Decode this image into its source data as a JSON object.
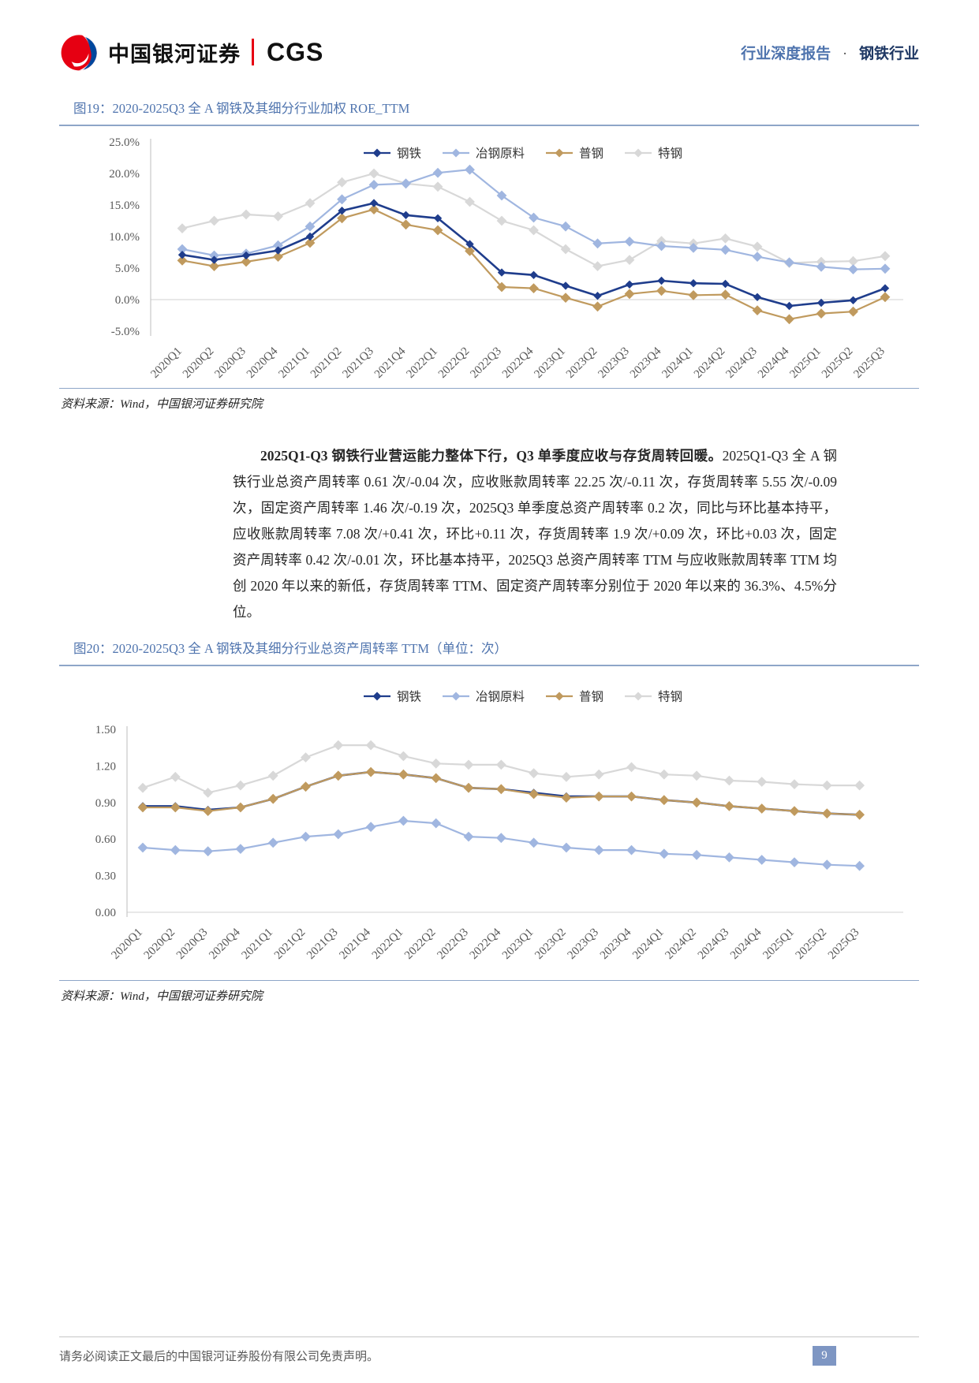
{
  "colors": {
    "brand_red": "#E60012",
    "brand_blue": "#00479D",
    "accent_blue": "#4F74AE",
    "rule_blue": "#8EA6C8",
    "badge_blue": "#7E96C3"
  },
  "header": {
    "logo_text": "中国银河证券",
    "logo_suffix": "CGS",
    "report_type": "行业深度报告",
    "separator": "·",
    "industry": "钢铁行业"
  },
  "figures": [
    {
      "title": "图19：2020-2025Q3 全 A 钢铁及其细分行业加权 ROE_TTM",
      "source": "资料来源：Wind，中国银河证券研究院"
    },
    {
      "title": "图20：2020-2025Q3 全 A 钢铁及其细分行业总资产周转率 TTM（单位：次）",
      "source": "资料来源：Wind，中国银河证券研究院"
    }
  ],
  "paragraph": {
    "lead": "2025Q1-Q3 钢铁行业营运能力整体下行，Q3 单季度应收与存货周转回暖。",
    "body": "2025Q1-Q3 全 A 钢铁行业总资产周转率 0.61 次/-0.04 次，应收账款周转率 22.25 次/-0.11 次，存货周转率 5.55 次/-0.09 次，固定资产周转率 1.46 次/-0.19 次，2025Q3 单季度总资产周转率 0.2 次，同比与环比基本持平，应收账款周转率 7.08 次/+0.41 次，环比+0.11 次，存货周转率 1.9 次/+0.09 次，环比+0.03 次，固定资产周转率 0.42 次/-0.01 次，环比基本持平，2025Q3 总资产周转率 TTM 与应收账款周转率 TTM 均创 2020 年以来的新低，存货周转率 TTM、固定资产周转率分别位于 2020 年以来的 36.3%、4.5%分位。"
  },
  "footer": {
    "disclaimer": "请务必阅读正文最后的中国银河证券股份有限公司免责声明。",
    "page_number": "9"
  },
  "chart_data": [
    {
      "type": "line",
      "title": "2020-2025Q3 全 A 钢铁及其细分行业加权 ROE_TTM",
      "categories": [
        "2020Q1",
        "2020Q2",
        "2020Q3",
        "2020Q4",
        "2021Q1",
        "2021Q2",
        "2021Q3",
        "2021Q4",
        "2022Q1",
        "2022Q2",
        "2022Q3",
        "2022Q4",
        "2023Q1",
        "2023Q2",
        "2023Q3",
        "2023Q4",
        "2024Q1",
        "2024Q2",
        "2024Q3",
        "2024Q4",
        "2025Q1",
        "2025Q2",
        "2025Q3"
      ],
      "ylim": [
        -5,
        25
      ],
      "ytick_values": [
        25,
        20,
        15,
        10,
        5,
        0,
        -5
      ],
      "ytick_labels": [
        "25.0%",
        "20.0%",
        "15.0%",
        "10.0%",
        "5.0%",
        "0.0%",
        "-5.0%"
      ],
      "gridlines": [
        0
      ],
      "legend_position": "top-center",
      "draw_order": [
        "特钢",
        "冶钢原料",
        "普钢",
        "钢铁"
      ],
      "series": [
        {
          "name": "钢铁",
          "color": "#1F3D8C",
          "values": [
            7.1,
            6.3,
            7.0,
            7.8,
            10.0,
            14.1,
            15.3,
            13.4,
            12.9,
            8.8,
            4.3,
            3.9,
            2.2,
            0.6,
            2.4,
            3.0,
            2.6,
            2.5,
            0.4,
            -1.0,
            -0.5,
            -0.1,
            1.8
          ]
        },
        {
          "name": "冶钢原料",
          "color": "#A0B6E0",
          "values": [
            8.0,
            7.0,
            7.3,
            8.6,
            11.6,
            15.9,
            18.2,
            18.4,
            20.1,
            20.6,
            16.5,
            13.0,
            11.6,
            8.9,
            9.2,
            8.5,
            8.2,
            7.9,
            6.8,
            5.9,
            5.2,
            4.8,
            4.9
          ]
        },
        {
          "name": "普钢",
          "color": "#C09A5E",
          "values": [
            6.2,
            5.3,
            6.0,
            6.8,
            9.0,
            12.9,
            14.3,
            11.9,
            11.0,
            7.7,
            2.0,
            1.8,
            0.3,
            -1.1,
            0.9,
            1.4,
            0.7,
            0.8,
            -1.7,
            -3.1,
            -2.2,
            -1.9,
            0.4
          ]
        },
        {
          "name": "特钢",
          "color": "#D8D8D8",
          "values": [
            11.3,
            12.5,
            13.5,
            13.2,
            15.3,
            18.6,
            20.0,
            18.4,
            17.9,
            15.5,
            12.5,
            11.0,
            8.0,
            5.3,
            6.3,
            9.3,
            8.9,
            9.7,
            8.4,
            5.8,
            6.0,
            6.1,
            6.9
          ]
        }
      ]
    },
    {
      "type": "line",
      "title": "2020-2025Q3 全 A 钢铁及其细分行业总资产周转率 TTM（单位：次）",
      "categories": [
        "2020Q1",
        "2020Q2",
        "2020Q3",
        "2020Q4",
        "2021Q1",
        "2021Q2",
        "2021Q3",
        "2021Q4",
        "2022Q1",
        "2022Q2",
        "2022Q3",
        "2022Q4",
        "2023Q1",
        "2023Q2",
        "2023Q3",
        "2023Q4",
        "2024Q1",
        "2024Q2",
        "2024Q3",
        "2024Q4",
        "2025Q1",
        "2025Q2",
        "2025Q3"
      ],
      "ylim": [
        0,
        1.5
      ],
      "ytick_values": [
        1.5,
        1.2,
        0.9,
        0.6,
        0.3,
        0
      ],
      "ytick_labels": [
        "1.50",
        "1.20",
        "0.90",
        "0.60",
        "0.30",
        "0.00"
      ],
      "gridlines": [
        0
      ],
      "legend_position": "top-center",
      "draw_order": [
        "特钢",
        "冶钢原料",
        "钢铁",
        "普钢"
      ],
      "series": [
        {
          "name": "钢铁",
          "color": "#1F3D8C",
          "values": [
            0.87,
            0.87,
            0.84,
            0.86,
            0.93,
            1.03,
            1.12,
            1.15,
            1.13,
            1.1,
            1.02,
            1.01,
            0.98,
            0.95,
            0.95,
            0.95,
            0.92,
            0.9,
            0.87,
            0.85,
            0.83,
            0.81,
            0.8
          ]
        },
        {
          "name": "冶钢原料",
          "color": "#A0B6E0",
          "values": [
            0.53,
            0.51,
            0.5,
            0.52,
            0.57,
            0.62,
            0.64,
            0.7,
            0.75,
            0.73,
            0.62,
            0.61,
            0.57,
            0.53,
            0.51,
            0.51,
            0.48,
            0.47,
            0.45,
            0.43,
            0.41,
            0.39,
            0.38
          ]
        },
        {
          "name": "普钢",
          "color": "#C09A5E",
          "values": [
            0.86,
            0.86,
            0.83,
            0.86,
            0.93,
            1.03,
            1.12,
            1.15,
            1.13,
            1.1,
            1.02,
            1.01,
            0.97,
            0.94,
            0.95,
            0.95,
            0.92,
            0.9,
            0.87,
            0.85,
            0.83,
            0.81,
            0.8
          ]
        },
        {
          "name": "特钢",
          "color": "#D8D8D8",
          "values": [
            1.02,
            1.11,
            0.98,
            1.04,
            1.12,
            1.27,
            1.37,
            1.37,
            1.28,
            1.22,
            1.21,
            1.21,
            1.14,
            1.11,
            1.13,
            1.19,
            1.13,
            1.12,
            1.08,
            1.07,
            1.05,
            1.04,
            1.04
          ]
        }
      ]
    }
  ]
}
